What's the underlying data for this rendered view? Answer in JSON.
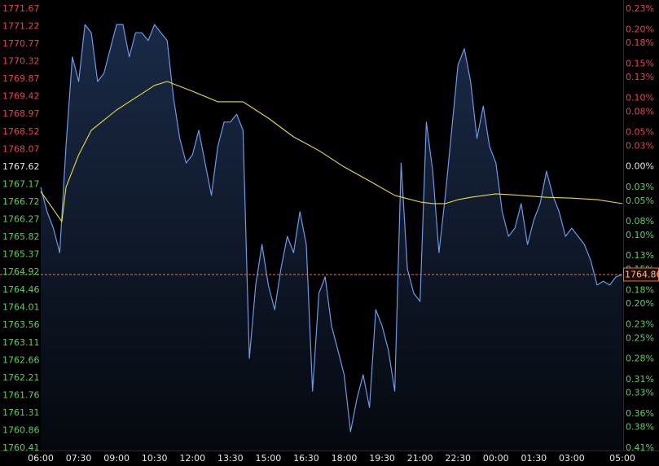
{
  "chart_data": {
    "type": "line",
    "background": "#000000",
    "area_color": "#22385e",
    "up_color": "#e8424e",
    "down_color": "#5ecf5e",
    "neutral_color": "#e6e6e6",
    "xlim": [
      "06:00",
      "05:00"
    ],
    "xticks": [
      "06:00",
      "07:30",
      "09:00",
      "10:30",
      "12:00",
      "13:30",
      "15:00",
      "16:30",
      "18:00",
      "19:30",
      "21:00",
      "22:30",
      "00:00",
      "01:30",
      "03:00",
      "05:00"
    ],
    "ylim": [
      1760.41,
      1771.67
    ],
    "yticks": [
      1771.67,
      1771.22,
      1770.77,
      1770.32,
      1769.87,
      1769.42,
      1768.97,
      1768.52,
      1768.07,
      1767.62,
      1767.17,
      1766.72,
      1766.27,
      1765.82,
      1765.37,
      1764.92,
      1764.46,
      1764.01,
      1763.56,
      1763.11,
      1762.66,
      1762.21,
      1761.76,
      1761.31,
      1760.86,
      1760.41
    ],
    "y2lim": [
      -0.41,
      0.23
    ],
    "y2ticks": [
      {
        "value": 0.23,
        "label": "0.23%"
      },
      {
        "value": 0.2,
        "label": "0.20%"
      },
      {
        "value": 0.18,
        "label": "0.18%"
      },
      {
        "value": 0.15,
        "label": "0.15%"
      },
      {
        "value": 0.13,
        "label": "0.13%"
      },
      {
        "value": 0.1,
        "label": "0.10%"
      },
      {
        "value": 0.08,
        "label": "0.08%"
      },
      {
        "value": 0.05,
        "label": "0.05%"
      },
      {
        "value": 0.03,
        "label": "0.03%"
      },
      {
        "value": 0,
        "label": "0.00%"
      },
      {
        "value": -0.03,
        "label": "0.03%"
      },
      {
        "value": -0.05,
        "label": "0.05%"
      },
      {
        "value": -0.08,
        "label": "0.08%"
      },
      {
        "value": -0.1,
        "label": "0.10%"
      },
      {
        "value": -0.13,
        "label": "0.13%"
      },
      {
        "value": -0.15,
        "label": "0.15%"
      },
      {
        "value": -0.18,
        "label": "0.18%"
      },
      {
        "value": -0.2,
        "label": "0.20%"
      },
      {
        "value": -0.23,
        "label": "0.23%"
      },
      {
        "value": -0.25,
        "label": "0.25%"
      },
      {
        "value": -0.28,
        "label": "0.28%"
      },
      {
        "value": -0.31,
        "label": "0.31%"
      },
      {
        "value": -0.33,
        "label": "0.33%"
      },
      {
        "value": -0.36,
        "label": "0.36%"
      },
      {
        "value": -0.38,
        "label": "0.38%"
      },
      {
        "value": -0.41,
        "label": "0.41%"
      }
    ],
    "last_price": 1764.86,
    "last_price_color": "#e8763a",
    "series": [
      {
        "color": "#6a9ae8",
        "x": [
          "06:00",
          "06:15",
          "06:30",
          "06:45",
          "07:00",
          "07:15",
          "07:30",
          "07:45",
          "08:00",
          "08:15",
          "08:30",
          "08:45",
          "09:00",
          "09:15",
          "09:30",
          "09:45",
          "10:00",
          "10:15",
          "10:30",
          "10:45",
          "11:00",
          "11:15",
          "11:30",
          "11:45",
          "12:00",
          "12:15",
          "12:30",
          "12:45",
          "13:00",
          "13:15",
          "13:30",
          "13:45",
          "14:00",
          "14:15",
          "14:30",
          "14:45",
          "15:00",
          "15:15",
          "15:30",
          "15:45",
          "16:00",
          "16:15",
          "16:30",
          "16:45",
          "17:00",
          "17:15",
          "17:30",
          "17:45",
          "18:00",
          "18:15",
          "18:30",
          "18:45",
          "19:00",
          "19:15",
          "19:30",
          "19:45",
          "20:00",
          "20:15",
          "20:30",
          "20:45",
          "21:00",
          "21:15",
          "21:30",
          "21:45",
          "22:00",
          "22:15",
          "22:30",
          "22:45",
          "23:00",
          "23:15",
          "23:30",
          "23:45",
          "00:00",
          "00:15",
          "00:30",
          "00:45",
          "01:00",
          "01:15",
          "01:30",
          "01:45",
          "02:00",
          "02:15",
          "02:30",
          "02:45",
          "03:00",
          "03:15",
          "03:30",
          "03:45",
          "04:00",
          "04:15",
          "04:30",
          "04:45",
          "05:00"
        ],
        "values": [
          1767.1,
          1766.47,
          1766.05,
          1765.42,
          1768.14,
          1770.44,
          1769.81,
          1771.27,
          1771.06,
          1769.81,
          1770.02,
          1770.65,
          1771.27,
          1771.27,
          1770.44,
          1771.06,
          1771.06,
          1770.86,
          1771.27,
          1771.06,
          1770.86,
          1769.39,
          1768.35,
          1767.72,
          1767.93,
          1768.56,
          1767.72,
          1766.89,
          1768.14,
          1768.77,
          1768.77,
          1768.97,
          1768.56,
          1762.71,
          1764.59,
          1765.63,
          1764.59,
          1763.96,
          1765.01,
          1765.84,
          1765.42,
          1766.47,
          1765.63,
          1761.87,
          1764.38,
          1764.8,
          1763.54,
          1762.92,
          1762.29,
          1760.83,
          1761.66,
          1762.29,
          1761.45,
          1763.96,
          1763.54,
          1762.92,
          1761.87,
          1767.72,
          1765.01,
          1764.38,
          1764.17,
          1768.77,
          1767.51,
          1765.42,
          1766.89,
          1768.56,
          1770.23,
          1770.65,
          1769.81,
          1768.35,
          1769.18,
          1768.14,
          1767.72,
          1766.47,
          1765.84,
          1766.05,
          1766.68,
          1765.63,
          1766.26,
          1766.68,
          1767.51,
          1766.89,
          1766.47,
          1765.84,
          1766.05,
          1765.84,
          1765.63,
          1765.22,
          1764.59,
          1764.69,
          1764.59,
          1764.8,
          1764.86
        ]
      },
      {
        "color": "#e6dc3c",
        "x": [
          "06:00",
          "06:50",
          "07:00",
          "07:30",
          "08:00",
          "09:00",
          "10:00",
          "10:30",
          "11:00",
          "12:00",
          "13:00",
          "13:30",
          "14:00",
          "15:00",
          "16:00",
          "17:00",
          "18:00",
          "19:00",
          "20:00",
          "21:00",
          "21:30",
          "22:00",
          "22:30",
          "23:00",
          "00:00",
          "01:00",
          "02:00",
          "03:00",
          "04:00",
          "05:00"
        ],
        "values": [
          1766.99,
          1766.22,
          1767.1,
          1767.93,
          1768.56,
          1769.08,
          1769.5,
          1769.71,
          1769.81,
          1769.56,
          1769.29,
          1769.29,
          1769.29,
          1768.87,
          1768.39,
          1768.04,
          1767.62,
          1767.26,
          1766.89,
          1766.72,
          1766.68,
          1766.68,
          1766.78,
          1766.84,
          1766.93,
          1766.89,
          1766.84,
          1766.82,
          1766.78,
          1766.68
        ]
      }
    ]
  }
}
